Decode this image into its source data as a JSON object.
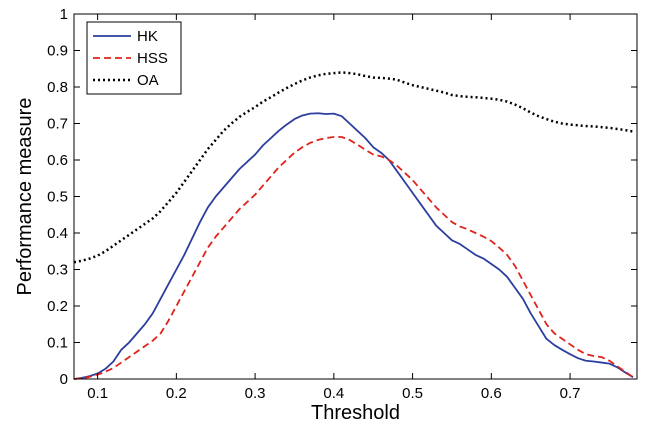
{
  "chart_data": {
    "type": "line",
    "title": "",
    "xlabel": "Threshold",
    "ylabel": "Performance measure",
    "xlim": [
      0.07,
      0.785
    ],
    "ylim": [
      0,
      1
    ],
    "xticks": [
      0.1,
      0.2,
      0.3,
      0.4,
      0.5,
      0.6,
      0.7
    ],
    "xtick_labels": [
      "0.1",
      "0.2",
      "0.3",
      "0.4",
      "0.5",
      "0.6",
      "0.7"
    ],
    "yticks": [
      0,
      0.1,
      0.2,
      0.3,
      0.4,
      0.5,
      0.6,
      0.7,
      0.8,
      0.9,
      1
    ],
    "ytick_labels": [
      "0",
      "0.1",
      "0.2",
      "0.3",
      "0.4",
      "0.5",
      "0.6",
      "0.7",
      "0.8",
      "0.9",
      "1"
    ],
    "grid": false,
    "legend_position": "top-left",
    "series": [
      {
        "name": "HK",
        "color": "#2c3e9f",
        "style": "solid",
        "x": [
          0.07,
          0.08,
          0.09,
          0.1,
          0.11,
          0.12,
          0.13,
          0.14,
          0.15,
          0.16,
          0.17,
          0.18,
          0.19,
          0.2,
          0.21,
          0.22,
          0.23,
          0.24,
          0.25,
          0.26,
          0.27,
          0.28,
          0.29,
          0.3,
          0.31,
          0.32,
          0.33,
          0.34,
          0.35,
          0.36,
          0.37,
          0.38,
          0.39,
          0.4,
          0.41,
          0.42,
          0.43,
          0.44,
          0.45,
          0.46,
          0.47,
          0.48,
          0.49,
          0.5,
          0.51,
          0.52,
          0.53,
          0.54,
          0.55,
          0.56,
          0.57,
          0.58,
          0.59,
          0.6,
          0.61,
          0.62,
          0.63,
          0.64,
          0.65,
          0.66,
          0.67,
          0.68,
          0.69,
          0.7,
          0.71,
          0.72,
          0.73,
          0.74,
          0.75,
          0.76,
          0.77,
          0.78
        ],
        "y": [
          0.0,
          0.003,
          0.008,
          0.015,
          0.028,
          0.048,
          0.08,
          0.1,
          0.125,
          0.15,
          0.18,
          0.22,
          0.26,
          0.3,
          0.34,
          0.385,
          0.43,
          0.47,
          0.5,
          0.525,
          0.55,
          0.575,
          0.595,
          0.615,
          0.64,
          0.66,
          0.68,
          0.697,
          0.712,
          0.722,
          0.727,
          0.728,
          0.726,
          0.727,
          0.72,
          0.7,
          0.68,
          0.66,
          0.635,
          0.62,
          0.6,
          0.57,
          0.54,
          0.51,
          0.48,
          0.45,
          0.42,
          0.4,
          0.38,
          0.37,
          0.355,
          0.34,
          0.33,
          0.315,
          0.3,
          0.28,
          0.25,
          0.22,
          0.18,
          0.145,
          0.11,
          0.093,
          0.08,
          0.068,
          0.057,
          0.05,
          0.048,
          0.045,
          0.042,
          0.032,
          0.018,
          0.005
        ]
      },
      {
        "name": "HSS",
        "color": "#e0231c",
        "style": "dashed",
        "x": [
          0.07,
          0.08,
          0.09,
          0.1,
          0.11,
          0.12,
          0.13,
          0.14,
          0.15,
          0.16,
          0.17,
          0.18,
          0.19,
          0.2,
          0.21,
          0.22,
          0.23,
          0.24,
          0.25,
          0.26,
          0.27,
          0.28,
          0.29,
          0.3,
          0.31,
          0.32,
          0.33,
          0.34,
          0.35,
          0.36,
          0.37,
          0.38,
          0.39,
          0.4,
          0.41,
          0.42,
          0.43,
          0.44,
          0.45,
          0.46,
          0.47,
          0.48,
          0.49,
          0.5,
          0.51,
          0.52,
          0.53,
          0.54,
          0.55,
          0.56,
          0.57,
          0.58,
          0.59,
          0.6,
          0.61,
          0.62,
          0.63,
          0.64,
          0.65,
          0.66,
          0.67,
          0.68,
          0.69,
          0.7,
          0.71,
          0.72,
          0.73,
          0.74,
          0.75,
          0.76,
          0.77,
          0.78
        ],
        "y": [
          0.0,
          0.002,
          0.006,
          0.012,
          0.02,
          0.03,
          0.045,
          0.06,
          0.075,
          0.09,
          0.105,
          0.125,
          0.16,
          0.2,
          0.24,
          0.28,
          0.32,
          0.36,
          0.39,
          0.415,
          0.44,
          0.465,
          0.485,
          0.505,
          0.53,
          0.555,
          0.58,
          0.6,
          0.62,
          0.635,
          0.647,
          0.655,
          0.66,
          0.663,
          0.663,
          0.655,
          0.642,
          0.628,
          0.615,
          0.61,
          0.6,
          0.585,
          0.565,
          0.545,
          0.52,
          0.495,
          0.47,
          0.45,
          0.43,
          0.418,
          0.41,
          0.4,
          0.39,
          0.378,
          0.36,
          0.34,
          0.31,
          0.27,
          0.23,
          0.19,
          0.15,
          0.125,
          0.11,
          0.095,
          0.08,
          0.068,
          0.063,
          0.06,
          0.05,
          0.035,
          0.02,
          0.005
        ]
      },
      {
        "name": "OA",
        "color": "#000000",
        "style": "dotted",
        "x": [
          0.07,
          0.08,
          0.09,
          0.1,
          0.11,
          0.12,
          0.13,
          0.14,
          0.15,
          0.16,
          0.17,
          0.18,
          0.19,
          0.2,
          0.21,
          0.22,
          0.23,
          0.24,
          0.25,
          0.26,
          0.27,
          0.28,
          0.29,
          0.3,
          0.31,
          0.32,
          0.33,
          0.34,
          0.35,
          0.36,
          0.37,
          0.38,
          0.39,
          0.4,
          0.41,
          0.42,
          0.43,
          0.44,
          0.45,
          0.46,
          0.47,
          0.48,
          0.49,
          0.5,
          0.51,
          0.52,
          0.53,
          0.54,
          0.55,
          0.56,
          0.57,
          0.58,
          0.59,
          0.6,
          0.61,
          0.62,
          0.63,
          0.64,
          0.65,
          0.66,
          0.67,
          0.68,
          0.69,
          0.7,
          0.71,
          0.72,
          0.73,
          0.74,
          0.75,
          0.76,
          0.77,
          0.78
        ],
        "y": [
          0.32,
          0.324,
          0.33,
          0.338,
          0.35,
          0.365,
          0.38,
          0.395,
          0.41,
          0.425,
          0.44,
          0.46,
          0.485,
          0.51,
          0.54,
          0.57,
          0.6,
          0.63,
          0.655,
          0.68,
          0.7,
          0.718,
          0.732,
          0.745,
          0.76,
          0.772,
          0.785,
          0.797,
          0.808,
          0.818,
          0.826,
          0.832,
          0.836,
          0.838,
          0.84,
          0.838,
          0.835,
          0.83,
          0.826,
          0.825,
          0.823,
          0.82,
          0.812,
          0.805,
          0.8,
          0.795,
          0.79,
          0.785,
          0.778,
          0.775,
          0.773,
          0.772,
          0.77,
          0.768,
          0.765,
          0.76,
          0.752,
          0.742,
          0.73,
          0.72,
          0.712,
          0.705,
          0.7,
          0.697,
          0.695,
          0.693,
          0.692,
          0.69,
          0.688,
          0.685,
          0.682,
          0.678
        ]
      }
    ]
  }
}
